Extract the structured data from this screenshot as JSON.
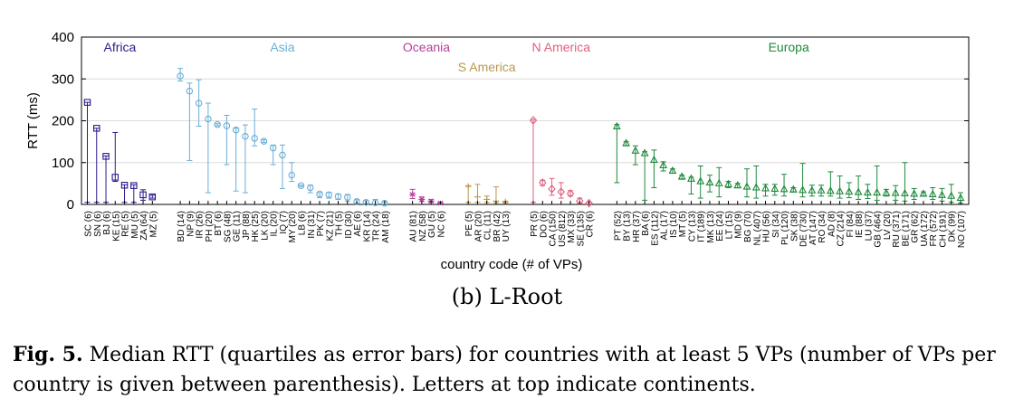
{
  "subcaption": "(b) L-Root",
  "caption": {
    "label": "Fig. 5.",
    "text": "Median RTT (quartiles as error bars) for countries with at least 5 VPs (number of VPs per country is given between parenthesis). Letters at top indicate continents."
  },
  "chart_data": {
    "type": "scatter",
    "xlabel": "country code (# of VPs)",
    "ylabel": "RTT (ms)",
    "ylim": [
      0,
      400
    ],
    "yticks": [
      0,
      100,
      200,
      300,
      400
    ],
    "grid": "horizontal",
    "legend_placement": "top",
    "groups": [
      {
        "name": "Africa",
        "color": "#2a1a8c",
        "marker": "square",
        "label_row": 1,
        "points": [
          {
            "x": "SC (6)",
            "median": 244,
            "q1": 5,
            "q3": 244
          },
          {
            "x": "SN (6)",
            "median": 182,
            "q1": 5,
            "q3": 182
          },
          {
            "x": "BJ (6)",
            "median": 115,
            "q1": 5,
            "q3": 116
          },
          {
            "x": "KE (15)",
            "median": 65,
            "q1": 55,
            "q3": 172
          },
          {
            "x": "RE (5)",
            "median": 46,
            "q1": 5,
            "q3": 47
          },
          {
            "x": "MU (5)",
            "median": 45,
            "q1": 5,
            "q3": 47
          },
          {
            "x": "ZA (64)",
            "median": 23,
            "q1": 10,
            "q3": 35
          },
          {
            "x": "MZ (5)",
            "median": 18,
            "q1": 15,
            "q3": 22
          }
        ]
      },
      {
        "name": "Asia",
        "color": "#6aaed6",
        "marker": "circle",
        "label_row": 1,
        "points": [
          {
            "x": "BD (14)",
            "median": 307,
            "q1": 295,
            "q3": 325
          },
          {
            "x": "NP (9)",
            "median": 271,
            "q1": 105,
            "q3": 290
          },
          {
            "x": "IR (26)",
            "median": 242,
            "q1": 187,
            "q3": 298
          },
          {
            "x": "PH (20)",
            "median": 204,
            "q1": 28,
            "q3": 242
          },
          {
            "x": "BT (6)",
            "median": 191,
            "q1": 188,
            "q3": 193
          },
          {
            "x": "SG (48)",
            "median": 188,
            "q1": 95,
            "q3": 213
          },
          {
            "x": "GE (11)",
            "median": 178,
            "q1": 32,
            "q3": 182
          },
          {
            "x": "JP (88)",
            "median": 163,
            "q1": 28,
            "q3": 190
          },
          {
            "x": "HK (25)",
            "median": 158,
            "q1": 140,
            "q3": 228
          },
          {
            "x": "LK (20)",
            "median": 151,
            "q1": 148,
            "q3": 154
          },
          {
            "x": "IL (20)",
            "median": 135,
            "q1": 95,
            "q3": 142
          },
          {
            "x": "IQ (7)",
            "median": 118,
            "q1": 38,
            "q3": 142
          },
          {
            "x": "MY (20)",
            "median": 70,
            "q1": 55,
            "q3": 100
          },
          {
            "x": "LB (6)",
            "median": 45,
            "q1": 43,
            "q3": 46
          },
          {
            "x": "IN (31)",
            "median": 40,
            "q1": 28,
            "q3": 46
          },
          {
            "x": "PK (7)",
            "median": 25,
            "q1": 16,
            "q3": 28
          },
          {
            "x": "KZ (21)",
            "median": 23,
            "q1": 15,
            "q3": 29
          },
          {
            "x": "TH (5)",
            "median": 19,
            "q1": 12,
            "q3": 25
          },
          {
            "x": "ID (30)",
            "median": 17,
            "q1": 8,
            "q3": 24
          },
          {
            "x": "AE (6)",
            "median": 7,
            "q1": 3,
            "q3": 11
          },
          {
            "x": "KR (14)",
            "median": 5,
            "q1": 2,
            "q3": 9
          },
          {
            "x": "TR (24)",
            "median": 4,
            "q1": 1,
            "q3": 12
          },
          {
            "x": "AM (18)",
            "median": 3,
            "q1": 1,
            "q3": 6
          }
        ]
      },
      {
        "name": "Oceania",
        "color": "#b5409b",
        "marker": "star",
        "label_row": 1,
        "points": [
          {
            "x": "AU (81)",
            "median": 24,
            "q1": 14,
            "q3": 36
          },
          {
            "x": "NZ (58)",
            "median": 12,
            "q1": 7,
            "q3": 18
          },
          {
            "x": "GU (5)",
            "median": 8,
            "q1": 5,
            "q3": 12
          },
          {
            "x": "NC (6)",
            "median": 3,
            "q1": 1,
            "q3": 5
          }
        ]
      },
      {
        "name": "S America",
        "color": "#b89a50",
        "marker": "plus",
        "label_row": 2,
        "points": [
          {
            "x": "PE (5)",
            "median": 43,
            "q1": 5,
            "q3": 45
          },
          {
            "x": "AR (20)",
            "median": 18,
            "q1": 5,
            "q3": 48
          },
          {
            "x": "CL (11)",
            "median": 12,
            "q1": 5,
            "q3": 20
          },
          {
            "x": "BR (42)",
            "median": 8,
            "q1": 4,
            "q3": 42
          },
          {
            "x": "UY (13)",
            "median": 6,
            "q1": 3,
            "q3": 8
          }
        ]
      },
      {
        "name": "N America",
        "color": "#e0607e",
        "marker": "diamond",
        "label_row": 1,
        "points": [
          {
            "x": "PR (5)",
            "median": 201,
            "q1": 5,
            "q3": 203
          },
          {
            "x": "DO (6)",
            "median": 52,
            "q1": 45,
            "q3": 58
          },
          {
            "x": "CA (150)",
            "median": 37,
            "q1": 22,
            "q3": 62
          },
          {
            "x": "US (812)",
            "median": 30,
            "q1": 15,
            "q3": 52
          },
          {
            "x": "MX (33)",
            "median": 26,
            "q1": 20,
            "q3": 33
          },
          {
            "x": "SE (135)",
            "median": 8,
            "q1": 3,
            "q3": 15
          },
          {
            "x": "CR (6)",
            "median": 3,
            "q1": 1,
            "q3": 5
          }
        ]
      },
      {
        "name": "Europa",
        "color": "#1e8a3c",
        "marker": "triangle",
        "label_row": 1,
        "points": [
          {
            "x": "PT (52)",
            "median": 186,
            "q1": 52,
            "q3": 191
          },
          {
            "x": "BY (13)",
            "median": 146,
            "q1": 140,
            "q3": 150
          },
          {
            "x": "HR (37)",
            "median": 128,
            "q1": 95,
            "q3": 140
          },
          {
            "x": "BA (6)",
            "median": 122,
            "q1": 10,
            "q3": 126
          },
          {
            "x": "ES (112)",
            "median": 106,
            "q1": 40,
            "q3": 130
          },
          {
            "x": "AL (17)",
            "median": 93,
            "q1": 80,
            "q3": 102
          },
          {
            "x": "IS (10)",
            "median": 80,
            "q1": 75,
            "q3": 85
          },
          {
            "x": "MT (5)",
            "median": 66,
            "q1": 60,
            "q3": 70
          },
          {
            "x": "CY (13)",
            "median": 61,
            "q1": 25,
            "q3": 65
          },
          {
            "x": "IT (189)",
            "median": 55,
            "q1": 15,
            "q3": 92
          },
          {
            "x": "MK (13)",
            "median": 52,
            "q1": 30,
            "q3": 70
          },
          {
            "x": "EE (24)",
            "median": 50,
            "q1": 18,
            "q3": 88
          },
          {
            "x": "LT (15)",
            "median": 48,
            "q1": 40,
            "q3": 55
          },
          {
            "x": "MD (9)",
            "median": 45,
            "q1": 40,
            "q3": 50
          },
          {
            "x": "BG (70)",
            "median": 42,
            "q1": 18,
            "q3": 85
          },
          {
            "x": "NL (407)",
            "median": 40,
            "q1": 15,
            "q3": 92
          },
          {
            "x": "HU (56)",
            "median": 38,
            "q1": 20,
            "q3": 48
          },
          {
            "x": "SI (34)",
            "median": 37,
            "q1": 22,
            "q3": 48
          },
          {
            "x": "PL (120)",
            "median": 36,
            "q1": 20,
            "q3": 72
          },
          {
            "x": "SK (38)",
            "median": 35,
            "q1": 30,
            "q3": 40
          },
          {
            "x": "DE (730)",
            "median": 34,
            "q1": 18,
            "q3": 98
          },
          {
            "x": "AT (147)",
            "median": 33,
            "q1": 20,
            "q3": 46
          },
          {
            "x": "RO (34)",
            "median": 33,
            "q1": 20,
            "q3": 46
          },
          {
            "x": "AD (8)",
            "median": 32,
            "q1": 20,
            "q3": 78
          },
          {
            "x": "CZ (214)",
            "median": 31,
            "q1": 15,
            "q3": 68
          },
          {
            "x": "FI (84)",
            "median": 30,
            "q1": 16,
            "q3": 52
          },
          {
            "x": "IE (88)",
            "median": 29,
            "q1": 12,
            "q3": 68
          },
          {
            "x": "LU (37)",
            "median": 28,
            "q1": 14,
            "q3": 48
          },
          {
            "x": "GB (464)",
            "median": 28,
            "q1": 10,
            "q3": 92
          },
          {
            "x": "LV (20)",
            "median": 27,
            "q1": 20,
            "q3": 36
          },
          {
            "x": "RU (371)",
            "median": 27,
            "q1": 10,
            "q3": 45
          },
          {
            "x": "BE (171)",
            "median": 26,
            "q1": 8,
            "q3": 100
          },
          {
            "x": "GR (62)",
            "median": 25,
            "q1": 12,
            "q3": 38
          },
          {
            "x": "UA (172)",
            "median": 25,
            "q1": 20,
            "q3": 30
          },
          {
            "x": "FR (572)",
            "median": 24,
            "q1": 12,
            "q3": 40
          },
          {
            "x": "CH (191)",
            "median": 22,
            "q1": 8,
            "q3": 38
          },
          {
            "x": "DK (99)",
            "median": 20,
            "q1": 5,
            "q3": 48
          },
          {
            "x": "NO (107)",
            "median": 15,
            "q1": 3,
            "q3": 28
          }
        ]
      }
    ]
  }
}
